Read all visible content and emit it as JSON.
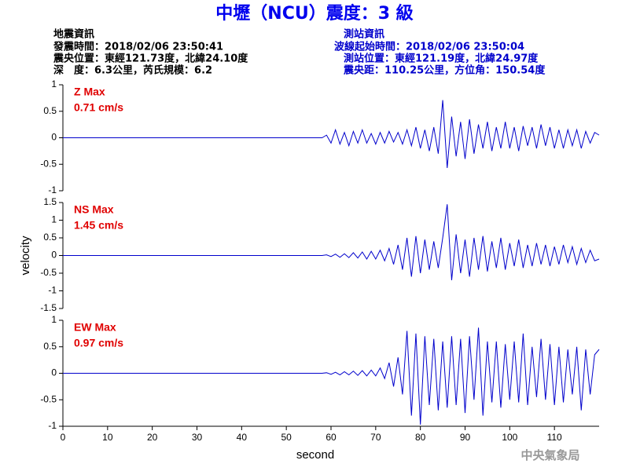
{
  "header": {
    "title": "中壢（NCU）震度：3 級",
    "left_info": [
      "地震資訊",
      "發震時間：2018/02/06 23:50:41",
      "震央位置：東經121.73度，北緯24.10度",
      "深　度：6.3公里，芮氏規模：6.2"
    ],
    "right_info": [
      "測站資訊",
      "波線起始時間：2018/02/06 23:50:04",
      "測站位置：東經121.19度，北緯24.97度",
      "震央距：110.25公里，方位角：150.54度"
    ],
    "footer": "中央氣象局"
  },
  "chart_data": [
    {
      "type": "line",
      "annotations": [
        "Z Max",
        "0.71 cm/s"
      ],
      "x": [
        0,
        58,
        59,
        60,
        61,
        62,
        63,
        64,
        65,
        66,
        67,
        68,
        69,
        70,
        71,
        72,
        73,
        74,
        75,
        76,
        77,
        78,
        79,
        80,
        81,
        82,
        83,
        84,
        85,
        86,
        87,
        88,
        89,
        90,
        91,
        92,
        93,
        94,
        95,
        96,
        97,
        98,
        99,
        100,
        101,
        102,
        103,
        104,
        105,
        106,
        107,
        108,
        109,
        110,
        111,
        112,
        113,
        114,
        115,
        116,
        117,
        118,
        119,
        120
      ],
      "series": [
        {
          "color": "#0000cc",
          "values": [
            0,
            0,
            0.05,
            -0.1,
            0.15,
            -0.12,
            0.1,
            -0.15,
            0.12,
            -0.1,
            0.15,
            -0.1,
            0.08,
            -0.12,
            0.1,
            -0.1,
            0.12,
            -0.08,
            0.1,
            -0.12,
            0.15,
            -0.15,
            0.2,
            -0.2,
            0.15,
            -0.25,
            0.2,
            -0.3,
            0.71,
            -0.57,
            0.4,
            -0.35,
            0.3,
            -0.4,
            0.35,
            -0.3,
            0.25,
            -0.2,
            0.3,
            -0.25,
            0.2,
            -0.2,
            0.3,
            -0.2,
            0.2,
            -0.25,
            0.22,
            -0.15,
            0.2,
            -0.2,
            0.25,
            -0.15,
            0.2,
            -0.2,
            0.15,
            -0.2,
            0.15,
            -0.15,
            0.15,
            -0.2,
            0.12,
            -0.1,
            0.1,
            0.05
          ]
        }
      ],
      "xlim": [
        0,
        120
      ],
      "ylim": [
        -1,
        1
      ],
      "yticks": [
        -1,
        -0.5,
        0,
        0.5,
        1
      ]
    },
    {
      "type": "line",
      "annotations": [
        "NS Max",
        "1.45 cm/s"
      ],
      "ylabel": "velocity",
      "x": [
        0,
        58,
        59,
        60,
        61,
        62,
        63,
        64,
        65,
        66,
        67,
        68,
        69,
        70,
        71,
        72,
        73,
        74,
        75,
        76,
        77,
        78,
        79,
        80,
        81,
        82,
        83,
        84,
        85,
        86,
        87,
        88,
        89,
        90,
        91,
        92,
        93,
        94,
        95,
        96,
        97,
        98,
        99,
        100,
        101,
        102,
        103,
        104,
        105,
        106,
        107,
        108,
        109,
        110,
        111,
        112,
        113,
        114,
        115,
        116,
        117,
        118,
        119,
        120
      ],
      "series": [
        {
          "color": "#0000cc",
          "values": [
            0,
            0,
            0.02,
            -0.03,
            0.04,
            -0.05,
            0.05,
            -0.06,
            0.08,
            -0.07,
            0.1,
            -0.1,
            0.12,
            -0.1,
            0.15,
            -0.15,
            0.2,
            -0.25,
            0.3,
            -0.4,
            0.5,
            -0.6,
            0.55,
            -0.5,
            0.45,
            -0.4,
            0.4,
            -0.35,
            0.5,
            1.45,
            -0.7,
            0.6,
            -0.5,
            0.45,
            -0.6,
            0.5,
            -0.4,
            0.55,
            -0.45,
            0.4,
            -0.35,
            0.5,
            -0.4,
            0.35,
            -0.3,
            0.45,
            -0.35,
            0.3,
            -0.3,
            0.35,
            -0.25,
            0.3,
            -0.3,
            0.25,
            -0.25,
            0.3,
            -0.2,
            0.25,
            -0.25,
            0.2,
            -0.2,
            0.15,
            -0.15,
            -0.1
          ]
        }
      ],
      "xlim": [
        0,
        120
      ],
      "ylim": [
        -1.5,
        1.5
      ],
      "yticks": [
        -1.5,
        -1,
        -0.5,
        0,
        0.5,
        1,
        1.5
      ]
    },
    {
      "type": "line",
      "annotations": [
        "EW Max",
        "0.97 cm/s"
      ],
      "xlabel": "second",
      "x": [
        0,
        58,
        59,
        60,
        61,
        62,
        63,
        64,
        65,
        66,
        67,
        68,
        69,
        70,
        71,
        72,
        73,
        74,
        75,
        76,
        77,
        78,
        79,
        80,
        81,
        82,
        83,
        84,
        85,
        86,
        87,
        88,
        89,
        90,
        91,
        92,
        93,
        94,
        95,
        96,
        97,
        98,
        99,
        100,
        101,
        102,
        103,
        104,
        105,
        106,
        107,
        108,
        109,
        110,
        111,
        112,
        113,
        114,
        115,
        116,
        117,
        118,
        119,
        120
      ],
      "series": [
        {
          "color": "#0000cc",
          "values": [
            0,
            0,
            0.01,
            -0.02,
            0.02,
            -0.03,
            0.03,
            -0.03,
            0.04,
            -0.04,
            0.05,
            -0.05,
            0.06,
            -0.05,
            0.1,
            -0.1,
            0.2,
            -0.25,
            0.3,
            -0.4,
            0.8,
            -0.8,
            0.75,
            -0.97,
            0.7,
            -0.6,
            0.65,
            -0.7,
            0.6,
            -0.65,
            0.7,
            -0.6,
            0.65,
            -0.75,
            0.7,
            -0.5,
            0.86,
            -0.8,
            0.6,
            -0.55,
            0.6,
            -0.65,
            0.55,
            -0.5,
            0.6,
            -0.55,
            0.75,
            -0.6,
            0.5,
            -0.45,
            0.65,
            -0.5,
            0.55,
            -0.6,
            0.5,
            -0.55,
            0.45,
            -0.4,
            0.5,
            -0.7,
            0.45,
            -0.4,
            0.35,
            0.45
          ]
        }
      ],
      "xlim": [
        0,
        120
      ],
      "ylim": [
        -1,
        1
      ],
      "yticks": [
        -1,
        -0.5,
        0,
        0.5,
        1
      ],
      "xticks": [
        0,
        10,
        20,
        30,
        40,
        50,
        60,
        70,
        80,
        90,
        100,
        110
      ]
    }
  ]
}
